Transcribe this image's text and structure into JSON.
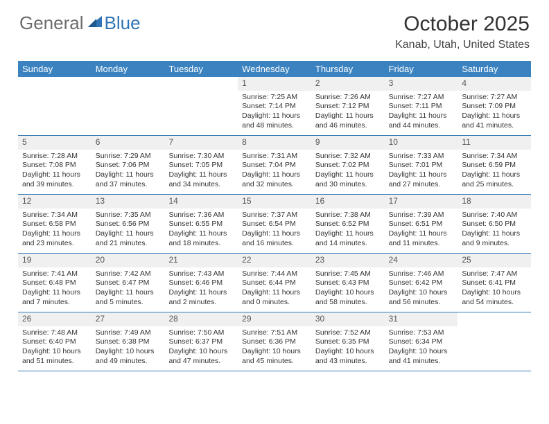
{
  "brand": {
    "general": "General",
    "blue": "Blue"
  },
  "title": "October 2025",
  "location": "Kanab, Utah, United States",
  "header_bg": "#3b83c0",
  "border_color": "#2f75b5",
  "daynum_bg": "#f0f0f0",
  "day_names": [
    "Sunday",
    "Monday",
    "Tuesday",
    "Wednesday",
    "Thursday",
    "Friday",
    "Saturday"
  ],
  "weeks": [
    [
      null,
      null,
      null,
      {
        "n": "1",
        "sr": "Sunrise: 7:25 AM",
        "ss": "Sunset: 7:14 PM",
        "dl": "Daylight: 11 hours and 48 minutes."
      },
      {
        "n": "2",
        "sr": "Sunrise: 7:26 AM",
        "ss": "Sunset: 7:12 PM",
        "dl": "Daylight: 11 hours and 46 minutes."
      },
      {
        "n": "3",
        "sr": "Sunrise: 7:27 AM",
        "ss": "Sunset: 7:11 PM",
        "dl": "Daylight: 11 hours and 44 minutes."
      },
      {
        "n": "4",
        "sr": "Sunrise: 7:27 AM",
        "ss": "Sunset: 7:09 PM",
        "dl": "Daylight: 11 hours and 41 minutes."
      }
    ],
    [
      {
        "n": "5",
        "sr": "Sunrise: 7:28 AM",
        "ss": "Sunset: 7:08 PM",
        "dl": "Daylight: 11 hours and 39 minutes."
      },
      {
        "n": "6",
        "sr": "Sunrise: 7:29 AM",
        "ss": "Sunset: 7:06 PM",
        "dl": "Daylight: 11 hours and 37 minutes."
      },
      {
        "n": "7",
        "sr": "Sunrise: 7:30 AM",
        "ss": "Sunset: 7:05 PM",
        "dl": "Daylight: 11 hours and 34 minutes."
      },
      {
        "n": "8",
        "sr": "Sunrise: 7:31 AM",
        "ss": "Sunset: 7:04 PM",
        "dl": "Daylight: 11 hours and 32 minutes."
      },
      {
        "n": "9",
        "sr": "Sunrise: 7:32 AM",
        "ss": "Sunset: 7:02 PM",
        "dl": "Daylight: 11 hours and 30 minutes."
      },
      {
        "n": "10",
        "sr": "Sunrise: 7:33 AM",
        "ss": "Sunset: 7:01 PM",
        "dl": "Daylight: 11 hours and 27 minutes."
      },
      {
        "n": "11",
        "sr": "Sunrise: 7:34 AM",
        "ss": "Sunset: 6:59 PM",
        "dl": "Daylight: 11 hours and 25 minutes."
      }
    ],
    [
      {
        "n": "12",
        "sr": "Sunrise: 7:34 AM",
        "ss": "Sunset: 6:58 PM",
        "dl": "Daylight: 11 hours and 23 minutes."
      },
      {
        "n": "13",
        "sr": "Sunrise: 7:35 AM",
        "ss": "Sunset: 6:56 PM",
        "dl": "Daylight: 11 hours and 21 minutes."
      },
      {
        "n": "14",
        "sr": "Sunrise: 7:36 AM",
        "ss": "Sunset: 6:55 PM",
        "dl": "Daylight: 11 hours and 18 minutes."
      },
      {
        "n": "15",
        "sr": "Sunrise: 7:37 AM",
        "ss": "Sunset: 6:54 PM",
        "dl": "Daylight: 11 hours and 16 minutes."
      },
      {
        "n": "16",
        "sr": "Sunrise: 7:38 AM",
        "ss": "Sunset: 6:52 PM",
        "dl": "Daylight: 11 hours and 14 minutes."
      },
      {
        "n": "17",
        "sr": "Sunrise: 7:39 AM",
        "ss": "Sunset: 6:51 PM",
        "dl": "Daylight: 11 hours and 11 minutes."
      },
      {
        "n": "18",
        "sr": "Sunrise: 7:40 AM",
        "ss": "Sunset: 6:50 PM",
        "dl": "Daylight: 11 hours and 9 minutes."
      }
    ],
    [
      {
        "n": "19",
        "sr": "Sunrise: 7:41 AM",
        "ss": "Sunset: 6:48 PM",
        "dl": "Daylight: 11 hours and 7 minutes."
      },
      {
        "n": "20",
        "sr": "Sunrise: 7:42 AM",
        "ss": "Sunset: 6:47 PM",
        "dl": "Daylight: 11 hours and 5 minutes."
      },
      {
        "n": "21",
        "sr": "Sunrise: 7:43 AM",
        "ss": "Sunset: 6:46 PM",
        "dl": "Daylight: 11 hours and 2 minutes."
      },
      {
        "n": "22",
        "sr": "Sunrise: 7:44 AM",
        "ss": "Sunset: 6:44 PM",
        "dl": "Daylight: 11 hours and 0 minutes."
      },
      {
        "n": "23",
        "sr": "Sunrise: 7:45 AM",
        "ss": "Sunset: 6:43 PM",
        "dl": "Daylight: 10 hours and 58 minutes."
      },
      {
        "n": "24",
        "sr": "Sunrise: 7:46 AM",
        "ss": "Sunset: 6:42 PM",
        "dl": "Daylight: 10 hours and 56 minutes."
      },
      {
        "n": "25",
        "sr": "Sunrise: 7:47 AM",
        "ss": "Sunset: 6:41 PM",
        "dl": "Daylight: 10 hours and 54 minutes."
      }
    ],
    [
      {
        "n": "26",
        "sr": "Sunrise: 7:48 AM",
        "ss": "Sunset: 6:40 PM",
        "dl": "Daylight: 10 hours and 51 minutes."
      },
      {
        "n": "27",
        "sr": "Sunrise: 7:49 AM",
        "ss": "Sunset: 6:38 PM",
        "dl": "Daylight: 10 hours and 49 minutes."
      },
      {
        "n": "28",
        "sr": "Sunrise: 7:50 AM",
        "ss": "Sunset: 6:37 PM",
        "dl": "Daylight: 10 hours and 47 minutes."
      },
      {
        "n": "29",
        "sr": "Sunrise: 7:51 AM",
        "ss": "Sunset: 6:36 PM",
        "dl": "Daylight: 10 hours and 45 minutes."
      },
      {
        "n": "30",
        "sr": "Sunrise: 7:52 AM",
        "ss": "Sunset: 6:35 PM",
        "dl": "Daylight: 10 hours and 43 minutes."
      },
      {
        "n": "31",
        "sr": "Sunrise: 7:53 AM",
        "ss": "Sunset: 6:34 PM",
        "dl": "Daylight: 10 hours and 41 minutes."
      },
      null
    ]
  ]
}
